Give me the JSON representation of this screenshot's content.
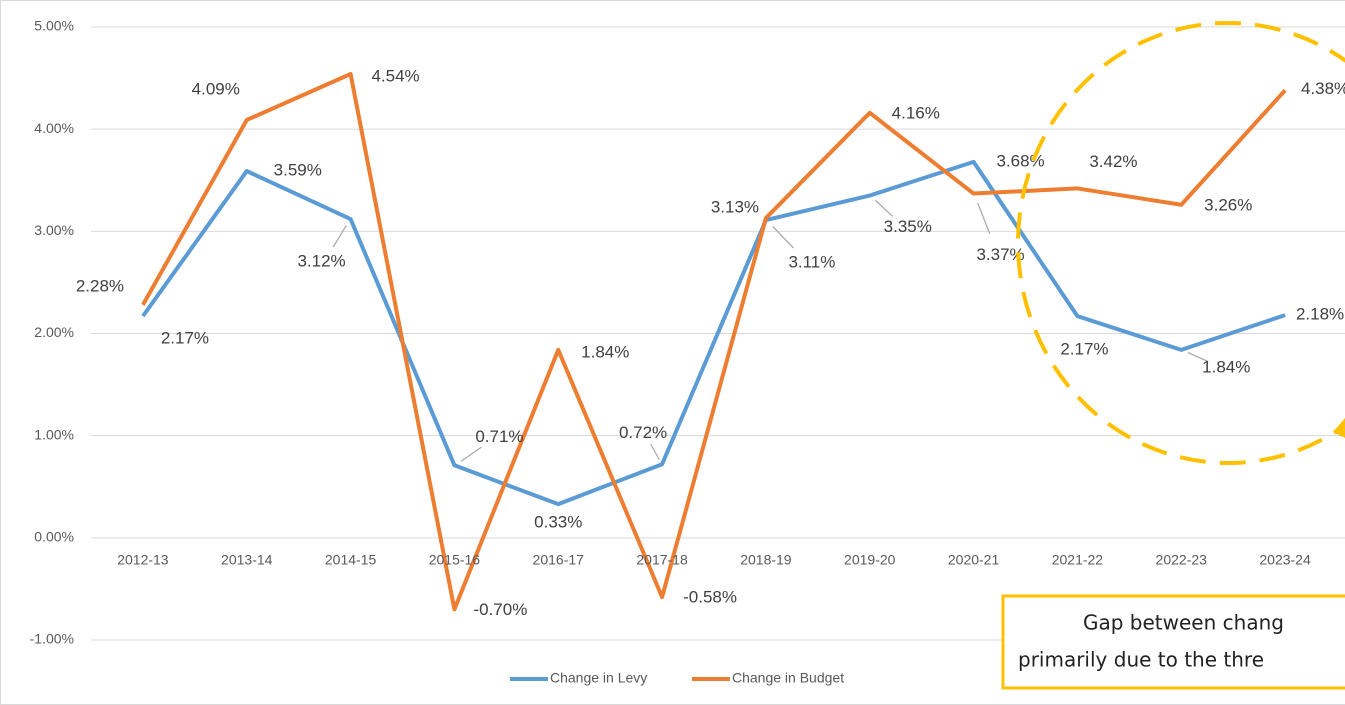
{
  "chart_data": {
    "type": "line",
    "categories": [
      "2012-13",
      "2013-14",
      "2014-15",
      "2015-16",
      "2016-17",
      "2017-18",
      "2018-19",
      "2019-20",
      "2020-21",
      "2021-22",
      "2022-23",
      "2023-24"
    ],
    "series": [
      {
        "name": "Change in Levy",
        "color": "#5b9bd5",
        "values": [
          2.17,
          3.59,
          3.12,
          0.71,
          0.33,
          0.72,
          3.11,
          3.35,
          3.68,
          2.17,
          1.84,
          2.18
        ],
        "value_labels": [
          "2.17%",
          "3.59%",
          "3.12%",
          "0.71%",
          "0.33%",
          "0.72%",
          "3.11%",
          "3.35%",
          "3.68%",
          "2.17%",
          "1.84%",
          "2.18%"
        ]
      },
      {
        "name": "Change in Budget",
        "color": "#ed7d31",
        "values": [
          2.28,
          4.09,
          4.54,
          -0.7,
          1.84,
          -0.58,
          3.13,
          4.16,
          3.37,
          3.42,
          3.26,
          4.38
        ],
        "value_labels": [
          "2.28%",
          "4.09%",
          "4.54%",
          "-0.70%",
          "1.84%",
          "-0.58%",
          "3.13%",
          "4.16%",
          "3.37%",
          "3.42%",
          "3.26%",
          "4.38%"
        ]
      }
    ],
    "ylim": [
      -1,
      5
    ],
    "yticks": [
      {
        "value": -1,
        "label": "-1.00%"
      },
      {
        "value": 0,
        "label": "0.00%"
      },
      {
        "value": 1,
        "label": "1.00%"
      },
      {
        "value": 2,
        "label": "2.00%"
      },
      {
        "value": 3,
        "label": "3.00%"
      },
      {
        "value": 4,
        "label": "4.00%"
      },
      {
        "value": 5,
        "label": "5.00%"
      }
    ],
    "grid": true,
    "legend": "bottom",
    "annotation": [
      "Gap between chang",
      "primarily due to the thre"
    ]
  }
}
